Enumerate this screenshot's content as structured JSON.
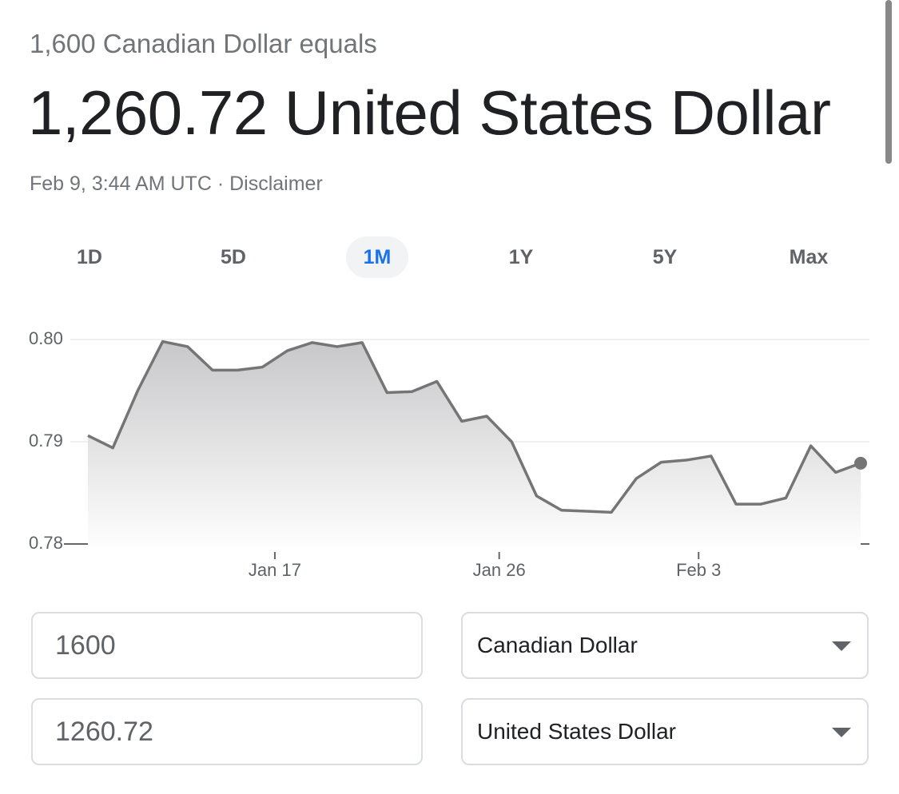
{
  "header": {
    "subtitle": "1,600 Canadian Dollar equals",
    "result": "1,260.72 United States Dollar",
    "timestamp": "Feb 9, 3:44 AM UTC ·",
    "disclaimer": "Disclaimer"
  },
  "tabs": {
    "items": [
      "1D",
      "5D",
      "1M",
      "1Y",
      "5Y",
      "Max"
    ],
    "selected": 2
  },
  "chart_data": {
    "type": "line",
    "categories": [
      null,
      null,
      null,
      null,
      null,
      null,
      null,
      null,
      null,
      null,
      null,
      null,
      null,
      null,
      null,
      null,
      null,
      null,
      null,
      null,
      null,
      null,
      null,
      null,
      null,
      null,
      null,
      null,
      null,
      null,
      null,
      null
    ],
    "series": [
      {
        "color": "#757575",
        "values": [
          0.7906,
          0.7894,
          0.795,
          0.7998,
          0.7993,
          0.797,
          0.797,
          0.7973,
          0.7989,
          0.7997,
          0.7993,
          0.7997,
          0.7948,
          0.7949,
          0.7959,
          0.792,
          0.7925,
          0.79,
          0.7847,
          0.7833,
          0.7832,
          0.7831,
          0.7864,
          0.788,
          0.7882,
          0.7886,
          0.7839,
          0.7839,
          0.7845,
          0.7896,
          0.787,
          0.7879
        ]
      }
    ],
    "xticks": [
      {
        "value": 7.5,
        "label": "Jan 17"
      },
      {
        "value": 16.5,
        "label": "Jan 26"
      },
      {
        "value": 24.5,
        "label": "Feb 3"
      }
    ],
    "ylim": [
      0.78,
      0.8
    ],
    "yticks": [
      {
        "value": 0.8,
        "label": "0.80"
      },
      0.79,
      0.78
    ],
    "grid": true
  },
  "converter": {
    "rows": [
      {
        "amount": "1600",
        "currency": "Canadian Dollar"
      },
      {
        "amount": "1260.72",
        "currency": "United States Dollar"
      }
    ]
  }
}
